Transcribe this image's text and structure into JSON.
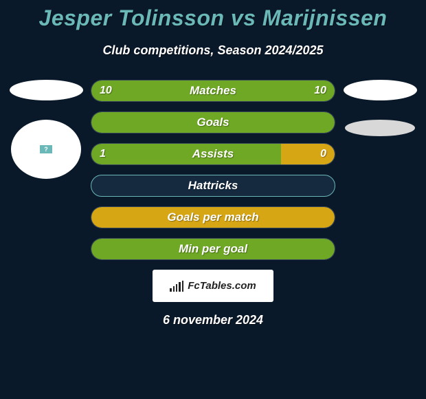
{
  "title": "Jesper Tolinsson vs Marijnissen",
  "subtitle": "Club competitions, Season 2024/2025",
  "date": "6 november 2024",
  "brand": "FcTables.com",
  "colors": {
    "background": "#0a1929",
    "title": "#6bb8b8",
    "text": "#ffffff",
    "bar_empty": "#162a3f",
    "green": "#6fa824",
    "amber": "#d6a615",
    "teal_border": "#6bb8b8"
  },
  "inner_flag_text": "?",
  "stats": [
    {
      "label": "Matches",
      "left_val": "10",
      "right_val": "10",
      "left_pct": 50,
      "right_pct": 50,
      "left_color": "#6fa824",
      "right_color": "#6fa824",
      "show_vals": true
    },
    {
      "label": "Goals",
      "left_val": "",
      "right_val": "",
      "left_pct": 100,
      "right_pct": 0,
      "left_color": "#6fa824",
      "right_color": "#6fa824",
      "show_vals": false,
      "full": true
    },
    {
      "label": "Assists",
      "left_val": "1",
      "right_val": "0",
      "left_pct": 78,
      "right_pct": 22,
      "left_color": "#6fa824",
      "right_color": "#d6a615",
      "show_vals": true
    },
    {
      "label": "Hattricks",
      "left_val": "",
      "right_val": "",
      "left_pct": 0,
      "right_pct": 0,
      "left_color": "#162a3f",
      "right_color": "#162a3f",
      "show_vals": false,
      "border_only": true,
      "border_color": "#6bb8b8"
    },
    {
      "label": "Goals per match",
      "left_val": "",
      "right_val": "",
      "left_pct": 100,
      "right_pct": 0,
      "left_color": "#d6a615",
      "right_color": "#d6a615",
      "show_vals": false,
      "full": true
    },
    {
      "label": "Min per goal",
      "left_val": "",
      "right_val": "",
      "left_pct": 100,
      "right_pct": 0,
      "left_color": "#6fa824",
      "right_color": "#6fa824",
      "show_vals": false,
      "full": true
    }
  ],
  "brand_bars_heights": [
    5,
    8,
    11,
    14,
    16
  ]
}
